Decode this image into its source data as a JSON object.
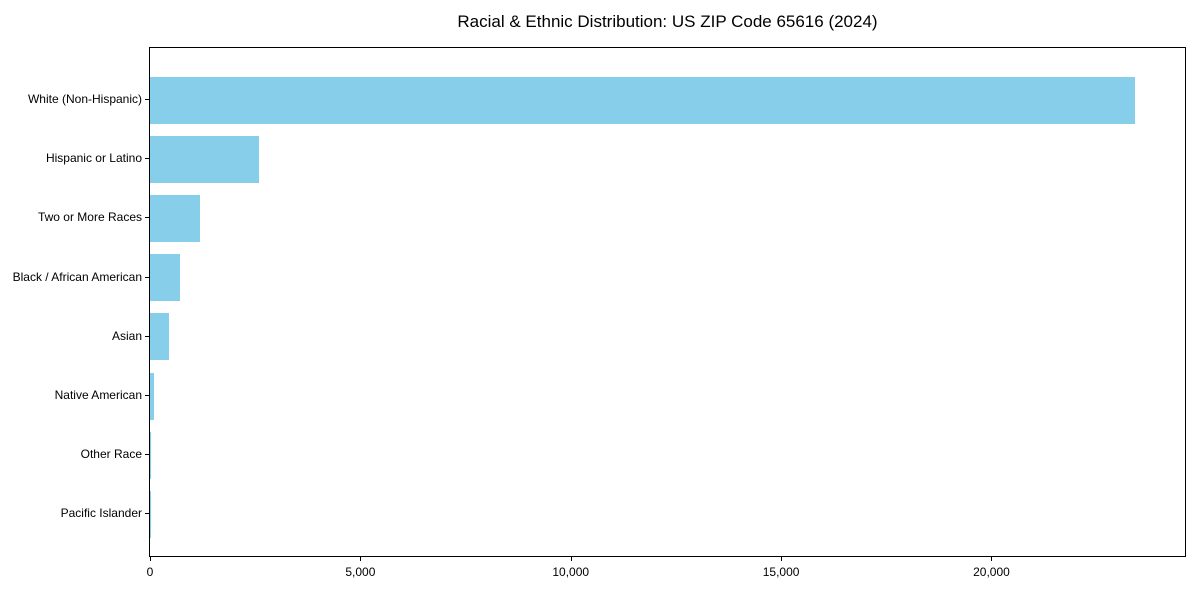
{
  "chart_data": {
    "type": "bar",
    "orientation": "horizontal",
    "title": "Racial & Ethnic Distribution: US ZIP Code 65616 (2024)",
    "categories": [
      "White (Non-Hispanic)",
      "Hispanic or Latino",
      "Two or More Races",
      "Black / African American",
      "Asian",
      "Native American",
      "Other Race",
      "Pacific Islander"
    ],
    "values": [
      23400,
      2600,
      1190,
      710,
      440,
      90,
      15,
      5
    ],
    "xlabel": "",
    "ylabel": "",
    "xlim": [
      0,
      24600
    ],
    "x_ticks": [
      {
        "value": 0,
        "label": "0"
      },
      {
        "value": 5000,
        "label": "5,000"
      },
      {
        "value": 10000,
        "label": "10,000"
      },
      {
        "value": 15000,
        "label": "15,000"
      },
      {
        "value": 20000,
        "label": "20,000"
      }
    ],
    "bar_color": "#87CEEB",
    "background_color": "#ffffff",
    "spine_color": "#000000",
    "grid": false,
    "legend": "none"
  }
}
